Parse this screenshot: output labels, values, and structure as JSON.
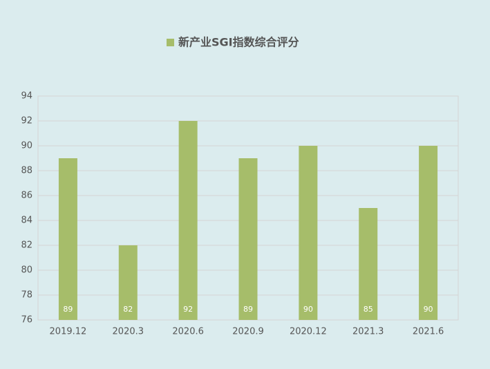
{
  "chart_data": {
    "type": "bar",
    "categories": [
      "2019.12",
      "2020.3",
      "2020.6",
      "2020.9",
      "2020.12",
      "2021.3",
      "2021.6"
    ],
    "series": [
      {
        "name": "新产业SGI指数综合评分",
        "color": "#a6bd6a",
        "values": [
          89,
          82,
          92,
          89,
          90,
          85,
          90
        ]
      }
    ],
    "ylim": [
      76,
      94
    ],
    "yticks": [
      76,
      78,
      80,
      82,
      84,
      86,
      88,
      90,
      92,
      94
    ],
    "grid": true
  }
}
